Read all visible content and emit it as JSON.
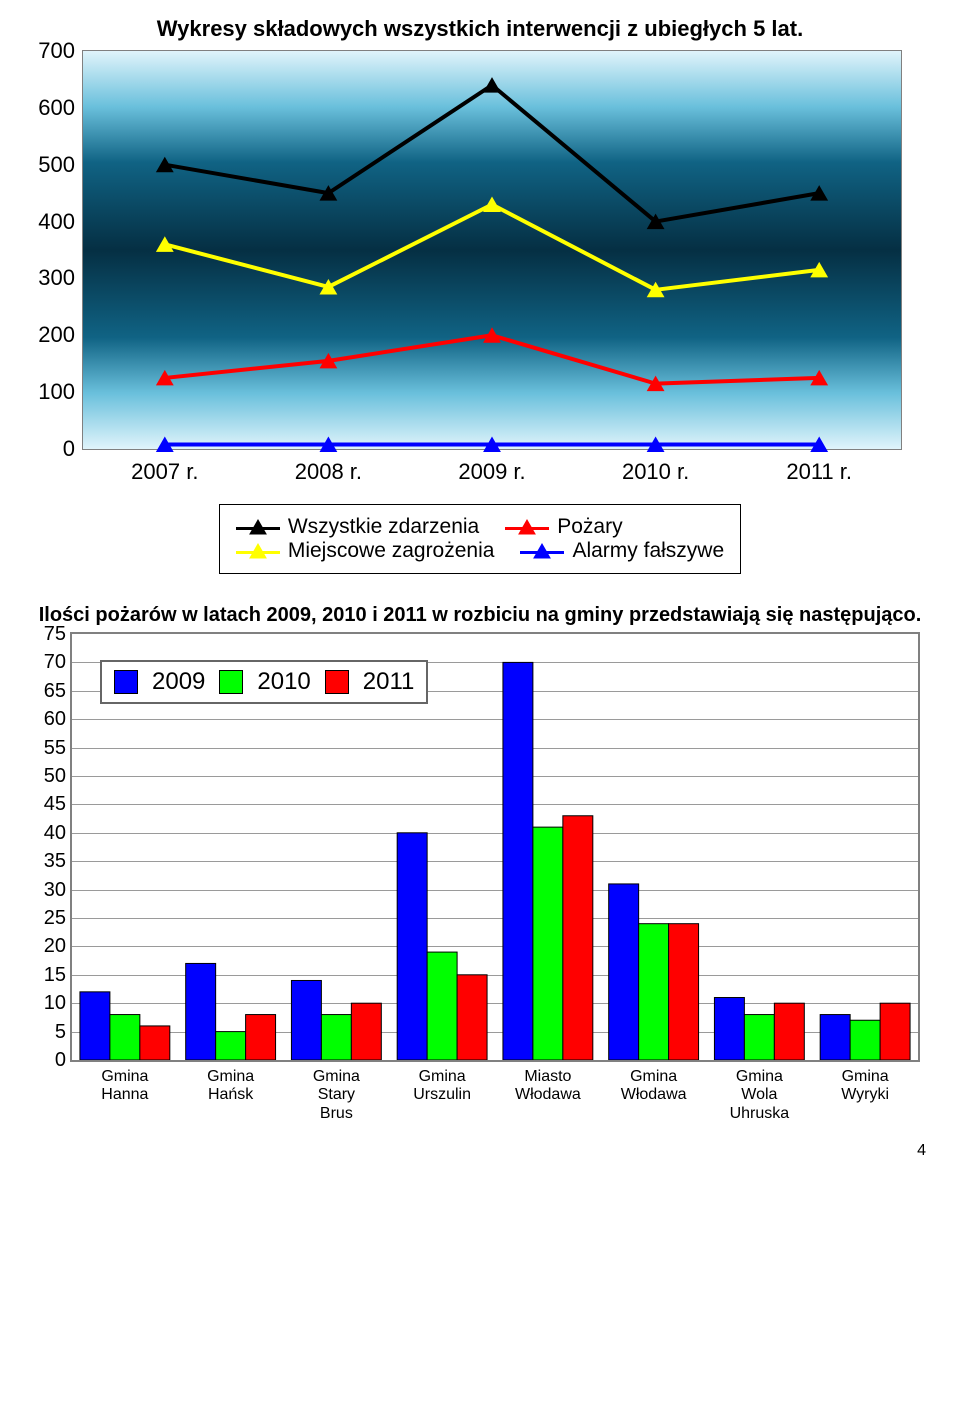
{
  "page_number": "4",
  "chart1": {
    "type": "line",
    "title": "Wykresy składowych wszystkich interwencji z ubiegłych 5 lat.",
    "title_fontsize": 22,
    "label_fontsize": 22,
    "categories": [
      "2007 r.",
      "2008 r.",
      "2009 r.",
      "2010 r.",
      "2011 r."
    ],
    "ymin": 0,
    "ymax": 700,
    "ytick_step": 100,
    "line_width": 4,
    "marker": "triangle",
    "marker_size": 14,
    "plot_border": "#808080",
    "background_gradient": [
      "#e8f6fb",
      "#74c3dd",
      "#0b3e58",
      "#0b3e58",
      "#063549",
      "#74c3dd",
      "#e8f6fb"
    ],
    "series": [
      {
        "name": "Wszystkie zdarzenia",
        "color": "#000000",
        "values": [
          500,
          450,
          640,
          400,
          450
        ]
      },
      {
        "name": "Pożary",
        "color": "#ff0000",
        "values": [
          125,
          155,
          200,
          115,
          125
        ]
      },
      {
        "name": "Miejscowe zagrożenia",
        "color": "#ffff00",
        "values": [
          360,
          285,
          430,
          280,
          315
        ]
      },
      {
        "name": "Alarmy fałszywe",
        "color": "#0000ff",
        "values": [
          8,
          8,
          8,
          8,
          8
        ]
      }
    ],
    "legend": {
      "order": [
        [
          "Wszystkie zdarzenia",
          "Pożary"
        ],
        [
          "Miejscowe zagrożenia",
          "Alarmy fałszywe"
        ]
      ],
      "border": "#000000",
      "background": "#ffffff"
    }
  },
  "chart2": {
    "type": "bar",
    "title": "Ilości pożarów w latach 2009, 2010 i 2011 w rozbiciu na gminy przedstawiają się następująco.",
    "title_fontsize": 20,
    "categories": [
      "Gmina Hanna",
      "Gmina Hańsk",
      "Gmina Stary Brus",
      "Gmina Urszulin",
      "Miasto Włodawa",
      "Gmina Włodawa",
      "Gmina Wola Uhruska",
      "Gmina Wyryki"
    ],
    "ymin": 0,
    "ymax": 75,
    "ytick_step": 5,
    "bar_border": "#000000",
    "plot_border": "#808080",
    "grid_color": "#9a9a9a",
    "background_color": "#ffffff",
    "bar_width_rel": 0.85,
    "series": [
      {
        "name": "2009",
        "color": "#0000ff",
        "values": [
          12,
          17,
          14,
          40,
          70,
          31,
          11,
          8
        ]
      },
      {
        "name": "2010",
        "color": "#00ff00",
        "values": [
          8,
          5,
          8,
          19,
          41,
          24,
          8,
          7
        ]
      },
      {
        "name": "2011",
        "color": "#ff0000",
        "values": [
          6,
          8,
          10,
          15,
          43,
          24,
          10,
          10
        ]
      }
    ],
    "legend": {
      "labels": [
        "2009",
        "2010",
        "2011"
      ],
      "colors": [
        "#0000ff",
        "#00ff00",
        "#ff0000"
      ],
      "border": "#666666"
    }
  }
}
